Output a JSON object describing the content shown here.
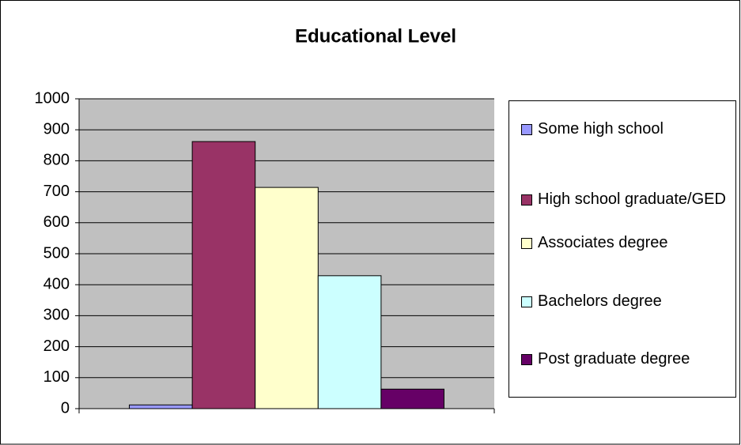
{
  "chart_data": {
    "type": "bar",
    "title": "Educational Level",
    "categories": [
      null
    ],
    "series": [
      {
        "name": "Some high school",
        "color": "#9999ff",
        "values": [
          12
        ]
      },
      {
        "name": "High school graduate/GED",
        "color": "#993366",
        "values": [
          862
        ]
      },
      {
        "name": "Associates degree",
        "color": "#ffffcc",
        "values": [
          714
        ]
      },
      {
        "name": "Bachelors degree",
        "color": "#ccffff",
        "values": [
          429
        ]
      },
      {
        "name": "Post graduate degree",
        "color": "#660066",
        "values": [
          63
        ]
      }
    ],
    "ylim": [
      0,
      1000
    ],
    "yticks": [
      0,
      100,
      200,
      300,
      400,
      500,
      600,
      700,
      800,
      900,
      1000
    ],
    "grid": true,
    "legend": "right"
  }
}
